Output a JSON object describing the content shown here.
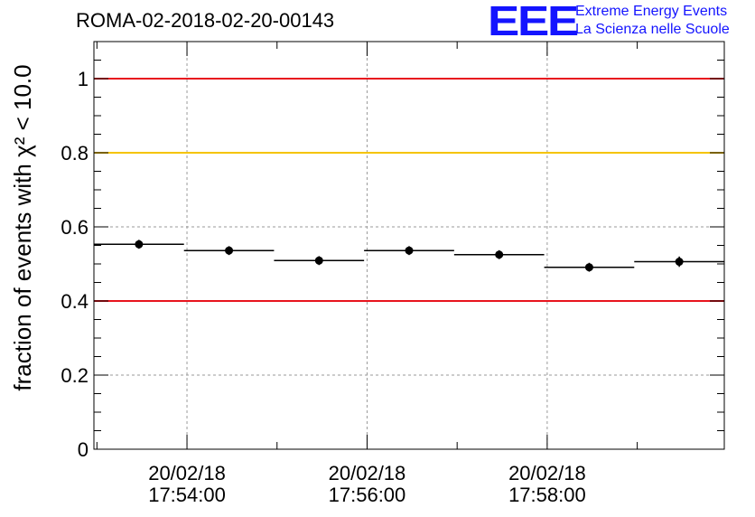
{
  "header": {
    "run_title": "ROMA-02-2018-02-20-00143",
    "logo_text": "EEE",
    "logo_line1": "Extreme Energy Events",
    "logo_line2": "La Scienza nelle Scuole"
  },
  "chart_data": {
    "type": "scatter",
    "title": "ROMA-02-2018-02-20-00143",
    "ylabel": "fraction of events with χ² < 10.0",
    "ylim": [
      0,
      1.1
    ],
    "yticks": [
      0,
      0.2,
      0.4,
      0.6,
      0.8,
      1
    ],
    "ytick_labels": [
      "0",
      "0.2",
      "0.4",
      "0.6",
      "0.8",
      "1"
    ],
    "xlim": [
      "2018-02-20T17:52:58",
      "2018-02-20T17:59:58"
    ],
    "xticks": [
      "2018-02-20T17:54:00",
      "2018-02-20T17:56:00",
      "2018-02-20T17:58:00"
    ],
    "xtick_labels": [
      [
        "20/02/18",
        "17:54:00"
      ],
      [
        "20/02/18",
        "17:56:00"
      ],
      [
        "20/02/18",
        "17:58:00"
      ]
    ],
    "grid": true,
    "reference_lines": [
      {
        "y": 1.0,
        "color": "#e8141e"
      },
      {
        "y": 0.8,
        "color": "#f5c400"
      },
      {
        "y": 0.4,
        "color": "#e8141e"
      }
    ],
    "series": [
      {
        "x_start": [
          "2018-02-20T17:52:58",
          "2018-02-20T17:53:58",
          "2018-02-20T17:54:58",
          "2018-02-20T17:55:58",
          "2018-02-20T17:56:58",
          "2018-02-20T17:57:58",
          "2018-02-20T17:58:58"
        ],
        "x_end": [
          "2018-02-20T17:53:58",
          "2018-02-20T17:54:58",
          "2018-02-20T17:55:58",
          "2018-02-20T17:56:58",
          "2018-02-20T17:57:58",
          "2018-02-20T17:58:58",
          "2018-02-20T17:59:58"
        ],
        "y": [
          0.553,
          0.536,
          0.509,
          0.536,
          0.525,
          0.491,
          0.506
        ],
        "y_err": [
          0.012,
          0.012,
          0.012,
          0.012,
          0.012,
          0.012,
          0.014
        ]
      }
    ]
  }
}
